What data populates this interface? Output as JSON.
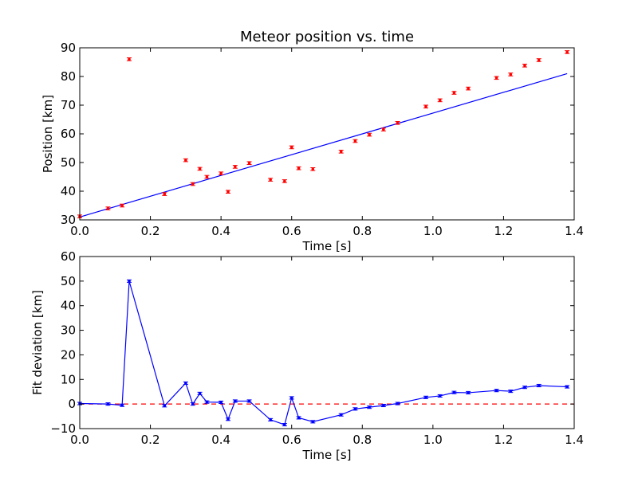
{
  "chart_data": [
    {
      "type": "scatter",
      "title": "Meteor position vs. time",
      "xlabel": "Time [s]",
      "ylabel": "Position [km]",
      "xlim": [
        0.0,
        1.4
      ],
      "ylim": [
        30,
        90
      ],
      "xticks": [
        "0.0",
        "0.2",
        "0.4",
        "0.6",
        "0.8",
        "1.0",
        "1.2",
        "1.4"
      ],
      "yticks": [
        "30",
        "40",
        "50",
        "60",
        "70",
        "80",
        "90"
      ],
      "grid": false,
      "colors": {
        "points": "#ff0000",
        "fit": "#0000ff"
      },
      "series": [
        {
          "kind": "points-with-errorbars",
          "x": [
            0.0,
            0.08,
            0.12,
            0.14,
            0.24,
            0.3,
            0.32,
            0.34,
            0.36,
            0.4,
            0.42,
            0.44,
            0.48,
            0.54,
            0.58,
            0.6,
            0.62,
            0.66,
            0.74,
            0.78,
            0.82,
            0.86,
            0.9,
            0.98,
            1.02,
            1.06,
            1.1,
            1.18,
            1.22,
            1.26,
            1.3,
            1.38
          ],
          "y": [
            31.2,
            34.0,
            35.0,
            86.0,
            39.0,
            50.8,
            42.5,
            47.8,
            45.0,
            46.2,
            39.8,
            48.5,
            49.8,
            44.0,
            43.5,
            55.3,
            48.0,
            47.7,
            53.8,
            57.5,
            59.7,
            61.5,
            63.8,
            69.5,
            71.7,
            74.3,
            75.8,
            79.5,
            80.7,
            83.8,
            85.7,
            88.5
          ],
          "err": [
            0.5,
            0.5,
            0.5,
            0.5,
            0.5,
            0.5,
            0.5,
            0.5,
            0.5,
            0.5,
            0.5,
            0.5,
            0.5,
            0.5,
            0.5,
            0.5,
            0.5,
            0.5,
            0.5,
            0.5,
            0.5,
            0.5,
            0.5,
            0.5,
            0.5,
            0.5,
            0.5,
            0.5,
            0.5,
            0.5,
            0.5,
            0.5
          ]
        },
        {
          "kind": "fit-line",
          "x": [
            0.0,
            1.38
          ],
          "y": [
            31.0,
            81.0
          ]
        }
      ]
    },
    {
      "type": "line",
      "title": "",
      "xlabel": "Time [s]",
      "ylabel": "Fit deviation [km]",
      "xlim": [
        0.0,
        1.4
      ],
      "ylim": [
        -10,
        60
      ],
      "xticks": [
        "0.0",
        "0.2",
        "0.4",
        "0.6",
        "0.8",
        "1.0",
        "1.2",
        "1.4"
      ],
      "yticks": [
        "−10",
        "0",
        "10",
        "20",
        "30",
        "40",
        "50",
        "60"
      ],
      "grid": false,
      "colors": {
        "deviation": "#0000ff",
        "zero": "#ff0000"
      },
      "series": [
        {
          "kind": "line-with-errorbars",
          "x": [
            0.0,
            0.08,
            0.12,
            0.14,
            0.24,
            0.3,
            0.32,
            0.34,
            0.36,
            0.4,
            0.42,
            0.44,
            0.48,
            0.54,
            0.58,
            0.6,
            0.62,
            0.66,
            0.74,
            0.78,
            0.82,
            0.86,
            0.9,
            0.98,
            1.02,
            1.06,
            1.1,
            1.18,
            1.22,
            1.26,
            1.3,
            1.38
          ],
          "y": [
            0.2,
            0.0,
            -0.5,
            50.0,
            -0.7,
            8.5,
            0.0,
            4.3,
            0.8,
            0.7,
            -6.2,
            1.2,
            1.2,
            -6.4,
            -8.4,
            2.5,
            -5.6,
            -7.2,
            -4.4,
            -2.0,
            -1.3,
            -0.6,
            0.2,
            2.7,
            3.3,
            4.7,
            4.6,
            5.5,
            5.2,
            6.8,
            7.5,
            7.0
          ],
          "err": [
            0.5,
            0.5,
            0.5,
            0.5,
            0.5,
            0.5,
            0.5,
            0.5,
            0.5,
            0.5,
            0.5,
            0.5,
            0.5,
            0.5,
            0.5,
            0.5,
            0.5,
            0.5,
            0.5,
            0.5,
            0.5,
            0.5,
            0.5,
            0.5,
            0.5,
            0.5,
            0.5,
            0.5,
            0.5,
            0.5,
            0.5,
            0.5
          ]
        },
        {
          "kind": "zero-line",
          "x": [
            0.0,
            1.4
          ],
          "y": [
            0,
            0
          ]
        }
      ]
    }
  ]
}
